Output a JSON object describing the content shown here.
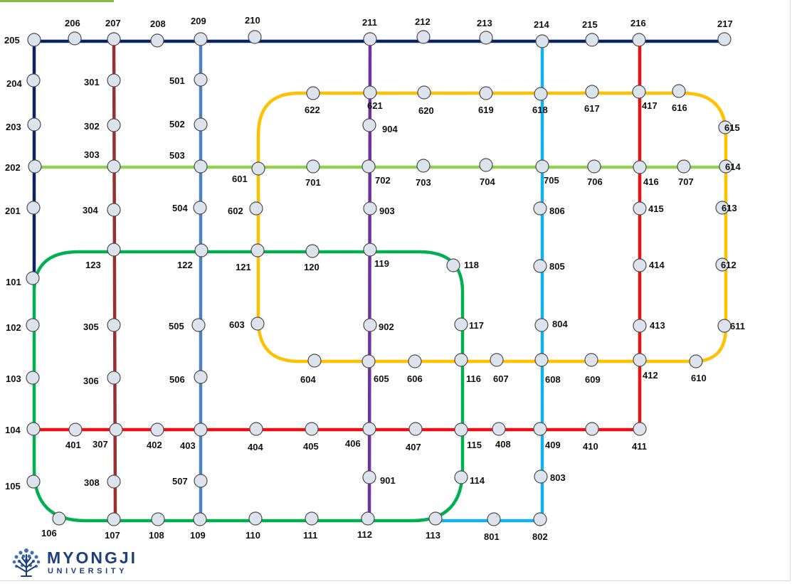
{
  "routes": [
    {
      "id": "200",
      "color": "#0a2463"
    },
    {
      "id": "300",
      "color": "#983030"
    },
    {
      "id": "400",
      "color": "#ee1111"
    },
    {
      "id": "500",
      "color": "#4f81bd"
    },
    {
      "id": "600",
      "color": "#ffc000"
    },
    {
      "id": "700",
      "color": "#92d050"
    },
    {
      "id": "800",
      "color": "#12b0ee"
    },
    {
      "id": "900",
      "color": "#7030a0"
    },
    {
      "id": "100",
      "color": "#00b050"
    }
  ],
  "stations": [
    "101",
    "102",
    "103",
    "104",
    "105",
    "106",
    "107",
    "108",
    "109",
    "110",
    "111",
    "112",
    "113",
    "114",
    "115",
    "116",
    "117",
    "118",
    "119",
    "120",
    "121",
    "122",
    "123",
    "201",
    "202",
    "203",
    "204",
    "205",
    "206",
    "207",
    "208",
    "209",
    "210",
    "211",
    "212",
    "213",
    "214",
    "215",
    "216",
    "217",
    "301",
    "302",
    "303",
    "304",
    "305",
    "306",
    "307",
    "308",
    "401",
    "402",
    "403",
    "404",
    "405",
    "406",
    "407",
    "408",
    "409",
    "410",
    "411",
    "412",
    "413",
    "414",
    "415",
    "416",
    "417",
    "501",
    "502",
    "503",
    "504",
    "505",
    "506",
    "507",
    "601",
    "602",
    "603",
    "604",
    "605",
    "606",
    "607",
    "608",
    "609",
    "610",
    "611",
    "612",
    "613",
    "614",
    "615",
    "616",
    "617",
    "618",
    "619",
    "620",
    "621",
    "622",
    "701",
    "702",
    "703",
    "704",
    "705",
    "706",
    "707",
    "801",
    "802",
    "803",
    "804",
    "805",
    "806",
    "901",
    "902",
    "903",
    "904"
  ],
  "logo": {
    "name": "MYONGJI",
    "subtitle": "UNIVERSITY",
    "icon": "tree-icon",
    "color": "#1d3f7a"
  },
  "colors": {
    "station_fill": "#dde3ec",
    "station_stroke": "#4a4a4a"
  }
}
